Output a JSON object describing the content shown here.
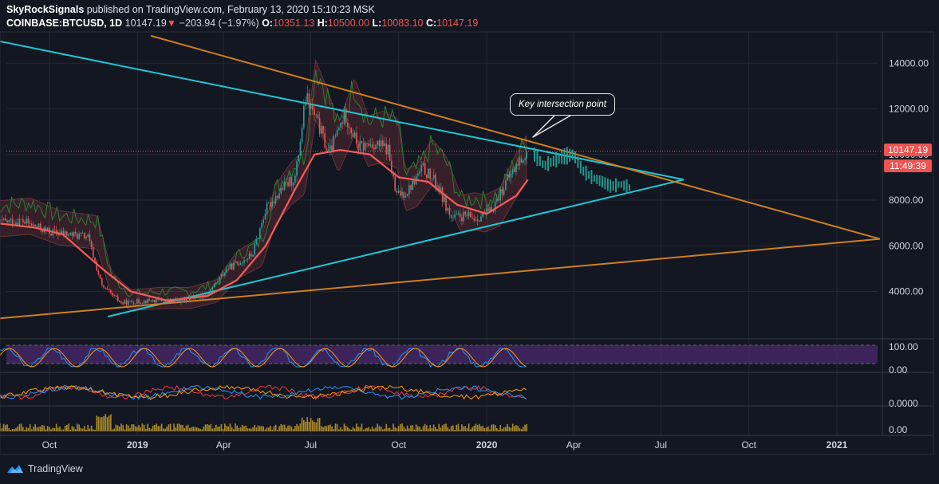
{
  "header": {
    "author": "SkyRockSignals",
    "published_text": "published on TradingView.com, February 13, 2020 15:10:23 MSK",
    "symbol": "COINBASE:BTCUSD, 1D",
    "last": "10147.19",
    "change_arrow": "▼",
    "change": "−203.94 (−1.97%)",
    "o_label": "O:",
    "o": "10351.13",
    "h_label": "H:",
    "h": "10500.00",
    "l_label": "L:",
    "l": "10083.10",
    "c_label": "C:",
    "c": "10147.19"
  },
  "price_tag": {
    "price": "10147.19",
    "countdown": "11:49:39"
  },
  "annotation": "Key intersection point",
  "footer": {
    "brand": "TradingView",
    "logo_icon": "tradingview-logo-icon"
  },
  "colors": {
    "background": "#131722",
    "grid": "#242832",
    "up": "#26a69a",
    "down": "#ef5350",
    "cyan_line": "#1fc7d4",
    "orange_line": "#cf7f1f",
    "ma": "#f45b5b",
    "rsi_band": "#4b2a6e",
    "volume": "#c9a227"
  },
  "chart_data": {
    "type": "line",
    "scale": "linear",
    "ylim": [
      2500,
      15000
    ],
    "y_ticks": [
      4000,
      6000,
      8000,
      10000,
      12000,
      14000
    ],
    "y_tick_labels": [
      "4000.00",
      "6000.00",
      "8000.00",
      "10000.00",
      "12000.00",
      "14000.00"
    ],
    "x_tick_labels": [
      "Oct",
      "2019",
      "Apr",
      "Jul",
      "Oct",
      "2020",
      "Apr",
      "Jul",
      "Oct",
      "2021"
    ],
    "grid": true,
    "current_price": 10147.19,
    "series": [
      {
        "kind": "price",
        "x": [
          "2018-08-05",
          "2018-09-01",
          "2018-10-01",
          "2018-11-10",
          "2018-11-25",
          "2018-12-15",
          "2019-01-15",
          "2019-02-15",
          "2019-03-15",
          "2019-04-05",
          "2019-05-01",
          "2019-05-15",
          "2019-06-01",
          "2019-06-15",
          "2019-06-26",
          "2019-07-10",
          "2019-07-20",
          "2019-08-06",
          "2019-08-20",
          "2019-09-05",
          "2019-09-20",
          "2019-09-28",
          "2019-10-10",
          "2019-10-26",
          "2019-11-10",
          "2019-11-25",
          "2019-12-10",
          "2019-12-20",
          "2020-01-05",
          "2020-01-20",
          "2020-02-01",
          "2020-02-13"
        ],
        "values": [
          7000,
          7100,
          6600,
          6400,
          4200,
          3500,
          3600,
          3600,
          3900,
          5000,
          5600,
          7600,
          8500,
          9000,
          12500,
          11200,
          10000,
          11800,
          10300,
          10500,
          10200,
          8200,
          8400,
          9400,
          8700,
          7200,
          7300,
          7200,
          7500,
          8700,
          9500,
          10147
        ]
      },
      {
        "kind": "projection",
        "x": [
          "2020-02-20",
          "2020-03-01",
          "2020-03-10",
          "2020-03-20",
          "2020-04-01",
          "2020-04-10",
          "2020-04-20",
          "2020-05-01",
          "2020-05-10",
          "2020-05-20",
          "2020-06-01"
        ],
        "values": [
          10000,
          9500,
          9700,
          9900,
          10000,
          9300,
          9000,
          8800,
          8600,
          8700,
          8500
        ]
      },
      {
        "kind": "moving-average",
        "x": [
          "2018-08-05",
          "2018-09-15",
          "2018-10-15",
          "2018-11-25",
          "2018-12-25",
          "2019-02-01",
          "2019-03-15",
          "2019-04-15",
          "2019-05-15",
          "2019-06-15",
          "2019-07-05",
          "2019-08-01",
          "2019-09-01",
          "2019-10-01",
          "2019-11-01",
          "2019-12-01",
          "2020-01-01",
          "2020-02-01",
          "2020-02-13"
        ],
        "values": [
          7000,
          6800,
          6500,
          5000,
          4000,
          3600,
          3800,
          4500,
          6000,
          8500,
          10000,
          10200,
          10000,
          9000,
          8800,
          7800,
          7400,
          8200,
          8900
        ]
      }
    ],
    "trendlines": [
      {
        "name": "",
        "color": "cyan",
        "points": [
          [
            "2018-08-05",
            15000
          ],
          [
            "2020-07-25",
            8900
          ]
        ]
      },
      {
        "name": "",
        "color": "cyan",
        "points": [
          [
            "2018-12-01",
            2900
          ],
          [
            "2020-07-25",
            8900
          ]
        ]
      },
      {
        "name": "",
        "color": "orange",
        "points": [
          [
            "2019-01-15",
            15200
          ],
          [
            "2021-02-15",
            6300
          ]
        ]
      },
      {
        "name": "",
        "color": "orange",
        "points": [
          [
            "2018-08-05",
            2800
          ],
          [
            "2021-02-15",
            6300
          ]
        ]
      }
    ],
    "oscillators": [
      {
        "kind": "rsi-stochastic",
        "y_ticks": [
          0,
          100
        ],
        "y_tick_labels": [
          "0.00",
          "100.00"
        ]
      },
      {
        "kind": "momentum",
        "y_ticks": [
          0
        ],
        "y_tick_labels": [
          "0.0000"
        ]
      },
      {
        "kind": "volume",
        "y_ticks": [
          0
        ],
        "y_tick_labels": [
          "0.00"
        ]
      }
    ]
  }
}
